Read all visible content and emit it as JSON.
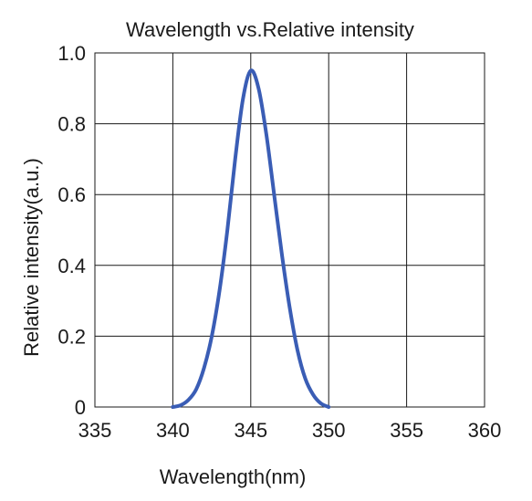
{
  "chart_data": {
    "type": "line",
    "title": "Wavelength vs.Relative intensity",
    "xlabel": "Wavelength(nm)",
    "ylabel": "Relative intensity(a.u.)",
    "xlim": [
      335,
      360
    ],
    "ylim": [
      0,
      1.0
    ],
    "x_ticks": [
      335,
      340,
      345,
      350,
      355,
      360
    ],
    "x_tick_labels": [
      "335",
      "340",
      "345",
      "350",
      "355",
      "360"
    ],
    "y_ticks": [
      0,
      0.2,
      0.4,
      0.6,
      0.8,
      1.0
    ],
    "y_tick_labels": [
      "0",
      "0.2",
      "0.4",
      "0.6",
      "0.8",
      "1.0"
    ],
    "grid": true,
    "series": [
      {
        "color": "#3a5db5",
        "x": [
          340,
          340.5,
          341,
          341.5,
          342,
          342.5,
          343,
          343.5,
          344,
          344.5,
          345,
          345.5,
          346,
          346.5,
          347,
          347.5,
          348,
          348.5,
          349,
          349.5,
          350
        ],
        "y": [
          0.0,
          0.005,
          0.02,
          0.05,
          0.11,
          0.2,
          0.33,
          0.5,
          0.7,
          0.87,
          0.95,
          0.9,
          0.77,
          0.6,
          0.43,
          0.28,
          0.16,
          0.08,
          0.035,
          0.01,
          0.0
        ]
      }
    ]
  }
}
